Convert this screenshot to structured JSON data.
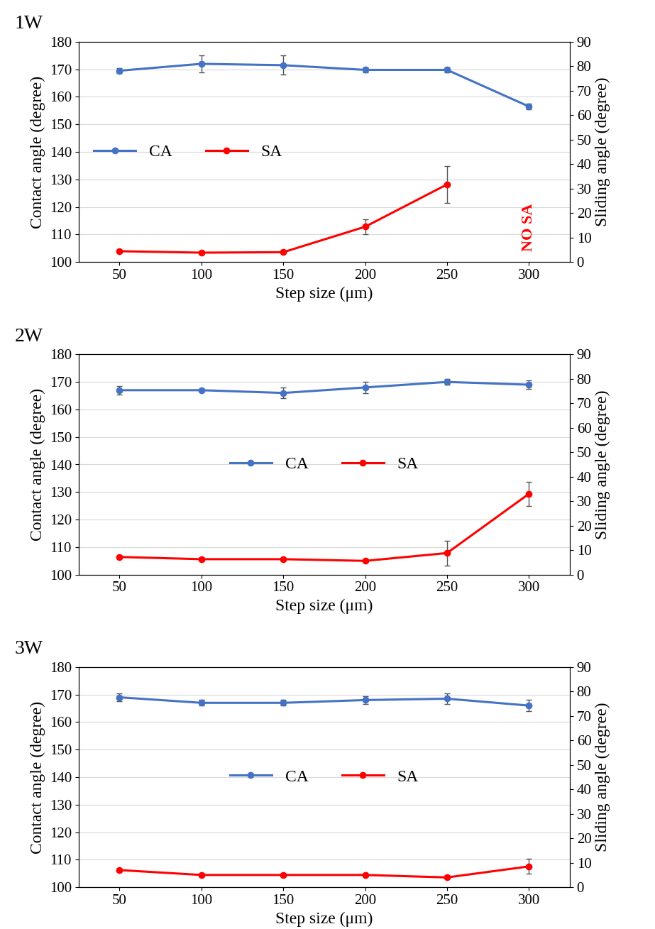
{
  "chart_data": [
    {
      "type": "line",
      "title": "1W",
      "x_label": "Step size (μm)",
      "y_label": "Contact angle (degree)",
      "y2_label": "Sliding angle (degree)",
      "x": [
        50,
        100,
        150,
        200,
        250,
        300
      ],
      "xlim": [
        25,
        325
      ],
      "xticks": [
        50,
        100,
        150,
        200,
        250,
        300
      ],
      "ylim": [
        100,
        180
      ],
      "yticks": [
        100,
        110,
        120,
        130,
        140,
        150,
        160,
        170,
        180
      ],
      "y2lim": [
        0,
        90
      ],
      "y2ticks": [
        0,
        10,
        20,
        30,
        40,
        50,
        60,
        70,
        80,
        90
      ],
      "grid": "y",
      "legend": "center left",
      "series": [
        {
          "name": "CA",
          "color": "#4472c4",
          "marker": "o",
          "line_style": "solid",
          "values": [
            169.5,
            172,
            171.5,
            169.8,
            169.8,
            156.5
          ],
          "errors": [
            1,
            3,
            3.5,
            1,
            1,
            1
          ]
        },
        {
          "name": "SA",
          "color": "#ff0000",
          "marker": "o",
          "line_style": "solid",
          "axis": "y2",
          "values": [
            4.4,
            3.8,
            4,
            14.4,
            31.7,
            null
          ],
          "errors": [
            0.5,
            0.5,
            0.5,
            3,
            7.5,
            null
          ]
        }
      ],
      "annotations": [
        {
          "text": "NO SA",
          "x": 300,
          "color": "#ff0000"
        }
      ]
    },
    {
      "type": "line",
      "title": "2W",
      "x_label": "Step size (μm)",
      "y_label": "Contact angle (degree)",
      "y2_label": "Sliding angle (degree)",
      "x": [
        50,
        100,
        150,
        200,
        250,
        300
      ],
      "xlim": [
        25,
        325
      ],
      "xticks": [
        50,
        100,
        150,
        200,
        250,
        300
      ],
      "ylim": [
        100,
        180
      ],
      "yticks": [
        100,
        110,
        120,
        130,
        140,
        150,
        160,
        170,
        180
      ],
      "y2lim": [
        0,
        90
      ],
      "y2ticks": [
        0,
        10,
        20,
        30,
        40,
        50,
        60,
        70,
        80,
        90
      ],
      "grid": "y",
      "legend": "center",
      "series": [
        {
          "name": "CA",
          "color": "#4472c4",
          "marker": "o",
          "line_style": "solid",
          "values": [
            167,
            167,
            166,
            168,
            170,
            169
          ],
          "errors": [
            1.5,
            0.5,
            2,
            2,
            1,
            1.5
          ]
        },
        {
          "name": "SA",
          "color": "#ff0000",
          "marker": "o",
          "line_style": "solid",
          "axis": "y2",
          "values": [
            7.2,
            6.3,
            6.3,
            5.6,
            8.8,
            33
          ],
          "errors": [
            0.5,
            0.5,
            0.5,
            0.5,
            5,
            5
          ]
        }
      ]
    },
    {
      "type": "line",
      "title": "3W",
      "x_label": "Step size (μm)",
      "y_label": "Contact angle (degree)",
      "y2_label": "Sliding angle (degree)",
      "x": [
        50,
        100,
        150,
        200,
        250,
        300
      ],
      "xlim": [
        25,
        325
      ],
      "xticks": [
        50,
        100,
        150,
        200,
        250,
        300
      ],
      "ylim": [
        100,
        180
      ],
      "yticks": [
        100,
        110,
        120,
        130,
        140,
        150,
        160,
        170,
        180
      ],
      "y2lim": [
        0,
        90
      ],
      "y2ticks": [
        0,
        10,
        20,
        30,
        40,
        50,
        60,
        70,
        80,
        90
      ],
      "grid": "y",
      "legend": "center",
      "series": [
        {
          "name": "CA",
          "color": "#4472c4",
          "marker": "o",
          "line_style": "solid",
          "values": [
            169,
            167,
            167,
            168,
            168.5,
            166
          ],
          "errors": [
            1.5,
            1,
            1,
            1.5,
            2,
            2
          ]
        },
        {
          "name": "SA",
          "color": "#ff0000",
          "marker": "o",
          "line_style": "solid",
          "axis": "y2",
          "values": [
            7,
            5,
            5,
            5,
            4,
            8.5
          ],
          "errors": [
            0.5,
            0.5,
            0.5,
            0.5,
            0.5,
            3
          ]
        }
      ]
    }
  ]
}
